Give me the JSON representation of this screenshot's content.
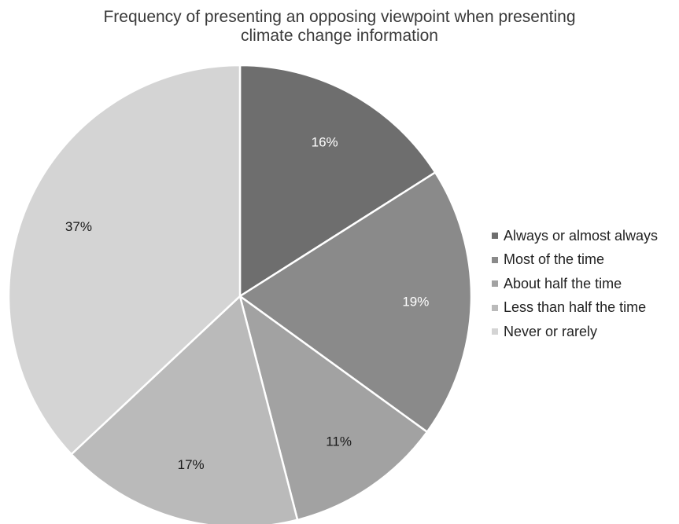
{
  "chart_data": {
    "type": "pie",
    "title": "Frequency of presenting an opposing viewpoint when presenting\nclimate change information",
    "categories": [
      "Always or almost always",
      "Most of the time",
      "About half the time",
      "Less than half the time",
      "Never or rarely"
    ],
    "values": [
      16,
      19,
      11,
      17,
      37
    ],
    "data_labels": [
      "16%",
      "19%",
      "11%",
      "17%",
      "37%"
    ],
    "colors": [
      "#6e6e6e",
      "#8a8a8a",
      "#a2a2a2",
      "#bababa",
      "#d4d4d4"
    ],
    "label_colors": [
      "#ffffff",
      "#ffffff",
      "#1a1a1a",
      "#1a1a1a",
      "#1a1a1a"
    ],
    "legend_position": "right",
    "start_angle": "top",
    "direction": "clockwise"
  }
}
